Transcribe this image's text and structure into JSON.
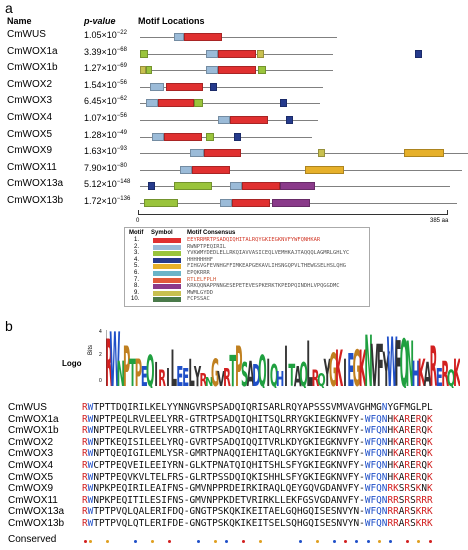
{
  "panel_a": {
    "label": "a",
    "headers": {
      "name": "Name",
      "pvalue": "p-value",
      "motif_locations": "Motif Locations"
    },
    "axis": {
      "start": "0",
      "end": "385 aa"
    },
    "genes": [
      {
        "name": "CmWUS",
        "p_mant": "1.05×10",
        "p_exp": "−22"
      },
      {
        "name": "CmWOX1a",
        "p_mant": "3.39×10",
        "p_exp": "−68"
      },
      {
        "name": "CmWOX1b",
        "p_mant": "1.27×10",
        "p_exp": "−69"
      },
      {
        "name": "CmWOX2",
        "p_mant": "1.54×10",
        "p_exp": "−56"
      },
      {
        "name": "CmWOX3",
        "p_mant": "6.45×10",
        "p_exp": "−62"
      },
      {
        "name": "CmWOX4",
        "p_mant": "1.07×10",
        "p_exp": "−56"
      },
      {
        "name": "CmWOX5",
        "p_mant": "1.28×10",
        "p_exp": "−49"
      },
      {
        "name": "CmWOX9",
        "p_mant": "1.63×10",
        "p_exp": "−93"
      },
      {
        "name": "CmWOX11",
        "p_mant": "7.90×10",
        "p_exp": "−80"
      },
      {
        "name": "CmWOX13a",
        "p_mant": "5.12×10",
        "p_exp": "−148"
      },
      {
        "name": "CmWOX13b",
        "p_mant": "1.72×10",
        "p_exp": "−136"
      }
    ],
    "legend": {
      "headers": {
        "motif": "Motif",
        "symbol": "Symbol",
        "consensus": "Motif Consensus"
      },
      "motifs": [
        {
          "num": "1.",
          "color": "#e03030",
          "consensus": "EEYRRMRTPSADQIQHITALRQYGKIEGKNVFYWFQNHKAR"
        },
        {
          "num": "2.",
          "color": "#9bbbd8",
          "consensus": "RWNPTPEQIRIL"
        },
        {
          "num": "3.",
          "color": "#9ac43c",
          "consensus": "YVKWMYDEDLELLRKQIAVVASICEQLVEMHKAJTAQQQLAGMRLGHLYC"
        },
        {
          "num": "4.",
          "color": "#253a8c",
          "consensus": "HHHHHHHF"
        },
        {
          "num": "5.",
          "color": "#e6b02a",
          "consensus": "FIHGVGFEVNHGFFIMKEAPGEKAVLIHSNGQPVLTHEWGSELHSLQHG"
        },
        {
          "num": "6.",
          "color": "#6ab4c8",
          "consensus": "EPQKRRR"
        },
        {
          "num": "7.",
          "color": "#e05a3a",
          "consensus": "RTLELFPLH"
        },
        {
          "num": "8.",
          "color": "#8a3a8a",
          "consensus": "KRKQQNAPPNNGESEPETEVESPKERKTKPEDPQINDHLVPQGGDMC"
        },
        {
          "num": "9.",
          "color": "#c8c050",
          "consensus": "MWMLGYDD"
        },
        {
          "num": "10.",
          "color": "#4a7a4a",
          "consensus": "FCPSSAC"
        }
      ]
    }
  },
  "panel_b": {
    "label": "b",
    "logo_label": "Logo",
    "bits_label": "Bits",
    "y_ticks": [
      "4",
      "2",
      "0"
    ],
    "sequences": [
      {
        "name": "CmWUS",
        "seq": "RWTPTTDQIRILKELYYNNGVRSPSADQIQRISARLRQYAPSSSVMVAVGHMGNYGFMGLPL"
      },
      {
        "name": "CmWOX1a",
        "seq": "RWNPTPEQLRVLEELYRR-GTRTPSADQIQHITSQLRRYGKIEGKNVFY-WFQNHKARERQK"
      },
      {
        "name": "CmWOX1b",
        "seq": "RWNPTPEQLRVLEELYRR-GTRTPSADQIQHITAQLRRYGKIEGKNVFY-WFQNHKARERQK"
      },
      {
        "name": "CmWOX2",
        "seq": "RWNPTKEQISILEELYRQ-GVRTPSADQIQQITVRLKDYGKIEGKNVFY-WFQNHKARERQK"
      },
      {
        "name": "CmWOX3",
        "seq": "RWNPTQEQIGILEMLYSR-GMRTPNAQQIEHITAQLGKYGKIEGKNVFY-WFQNHKARERQK"
      },
      {
        "name": "CmWOX4",
        "seq": "RWCPTPEQVEILEEIYRN-GLKTPNATQIQHITSHLSFYGKIEGKNVFY-WFQNHKARERQK"
      },
      {
        "name": "CmWOX5",
        "seq": "RWNPTPEQVKVLTELFRS-GLRTPSSDQIQKISHHLSFYGKIEGKNVFY-WFQNHKARERQK"
      },
      {
        "name": "CmWOX9",
        "seq": "RWNPKPEQIRILEAIFNS-GMVNPPRDEIRKIRAQLQEYGQVGDANVFY-WFQNRKSRSKNK"
      },
      {
        "name": "CmWOX11",
        "seq": "RWNPKPEQITILESIFNS-GMVNPPKDETVRIRKLLEKFGSVGDANVFY-WFQNRRSRSRRR"
      },
      {
        "name": "CmWOX13a",
        "seq": "RWTPTPVQLQALERIFDQ-GNGTPSKQKIKEITAELGQHGQISESNVYN-WFQNRRARSKRK"
      },
      {
        "name": "CmWOX13b",
        "seq": "RWTPTPVQLQTLERIFDE-GNGTPSKQKIKEITSELSQHGQISESNVYN-WFQNRRARSKRK"
      }
    ],
    "conserved_label": "Conserved"
  }
}
